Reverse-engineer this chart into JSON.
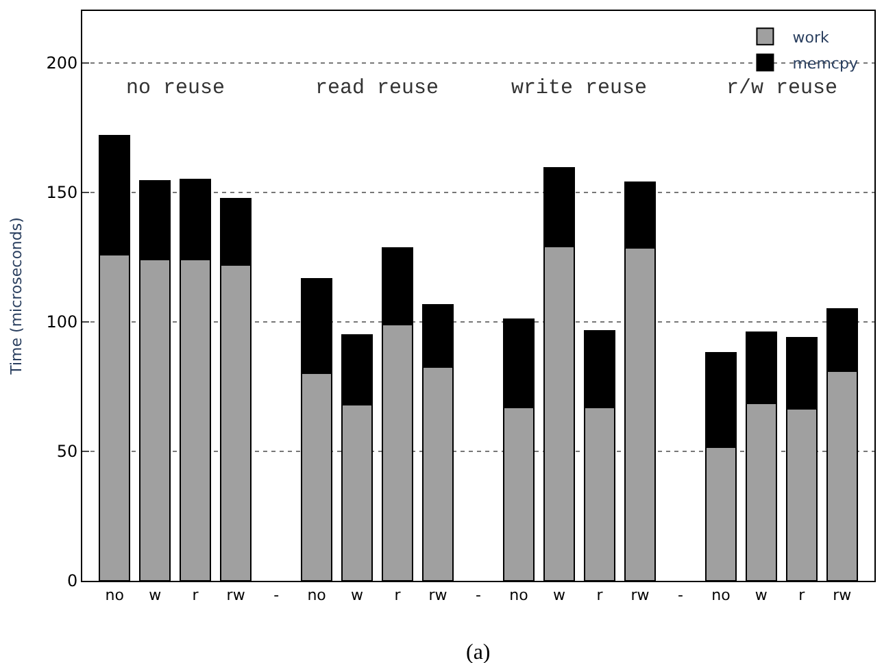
{
  "chart_data": {
    "type": "bar",
    "stacked": true,
    "ylabel": "Time (microseconds)",
    "categories": [
      "no",
      "w",
      "r",
      "rw",
      "-",
      "no",
      "w",
      "r",
      "rw",
      "-",
      "no",
      "w",
      "r",
      "rw",
      "-",
      "no",
      "w",
      "r",
      "rw"
    ],
    "series": [
      {
        "name": "work",
        "color": "#a0a0a0",
        "values": [
          126,
          124,
          124,
          122,
          null,
          80,
          68,
          99,
          82.5,
          null,
          67,
          129,
          67,
          128.5,
          null,
          51.5,
          68.5,
          66.5,
          81
        ]
      },
      {
        "name": "memcpy",
        "color": "#000000",
        "values": [
          46,
          30.5,
          31,
          25.5,
          null,
          36.5,
          27,
          29.5,
          24,
          null,
          34,
          30.5,
          29.5,
          25.5,
          null,
          36.5,
          27.5,
          27.5,
          24
        ]
      }
    ],
    "ylim": [
      0,
      220
    ],
    "yticks": [
      0,
      50,
      100,
      150,
      200
    ],
    "grid": "y",
    "legend": "top right",
    "annotations": [
      "no reuse",
      "read reuse",
      "write reuse",
      "r/w reuse",
      "(a)"
    ]
  }
}
